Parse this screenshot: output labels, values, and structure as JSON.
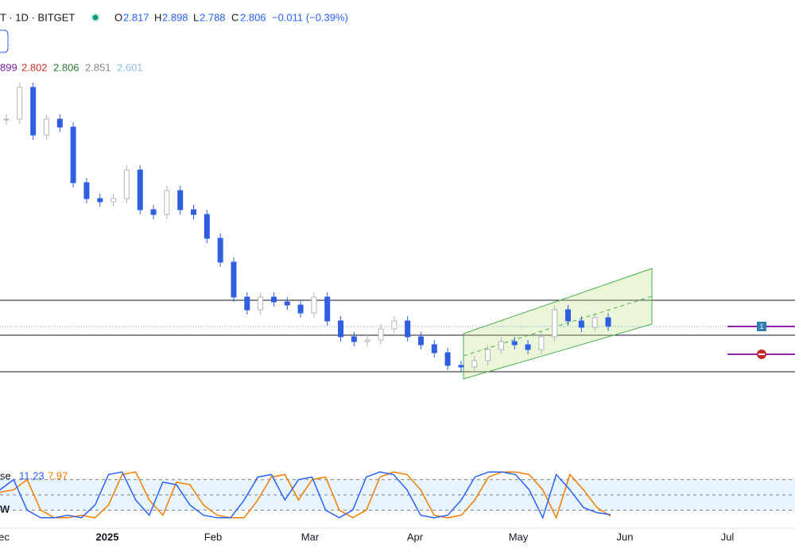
{
  "header": {
    "symbol": "T · 1D · BITGET",
    "open_label": "O",
    "open": "2.817",
    "high_label": "H",
    "high": "2.898",
    "low_label": "L",
    "low": "2.788",
    "close_label": "C",
    "close": "2.806",
    "change": "−0.011 (−0.39%)"
  },
  "indicator_legend": [
    "899",
    "2.802",
    "2.806",
    "2.851",
    "2.601"
  ],
  "price_chart": {
    "type": "candlestick",
    "closes": [
      4.11,
      4.31,
      4.01,
      4.11,
      4.06,
      3.71,
      3.61,
      3.59,
      3.61,
      3.79,
      3.54,
      3.51,
      3.66,
      3.54,
      3.51,
      3.36,
      3.21,
      2.99,
      2.91,
      2.99,
      2.96,
      2.94,
      2.89,
      2.99,
      2.84,
      2.74,
      2.71,
      2.72,
      2.79,
      2.84,
      2.74,
      2.69,
      2.64,
      2.56,
      2.55,
      2.59,
      2.66,
      2.71,
      2.69,
      2.66,
      2.74,
      2.91,
      2.84,
      2.8,
      2.86,
      2.806
    ],
    "ylim": [
      2.3,
      4.8
    ],
    "levels": [
      2.97,
      2.75,
      2.52
    ],
    "up_color": "#b2b5be",
    "down_color": "#2f5fe0"
  },
  "stochastic": {
    "name": "se",
    "k_value": "11.23",
    "d_value": "7.97",
    "k": [
      60,
      80,
      20,
      5,
      5,
      10,
      5,
      30,
      90,
      95,
      40,
      10,
      75,
      70,
      30,
      10,
      5,
      5,
      40,
      85,
      90,
      40,
      80,
      85,
      20,
      5,
      20,
      85,
      95,
      90,
      60,
      10,
      5,
      10,
      40,
      85,
      95,
      95,
      90,
      60,
      5,
      90,
      60,
      25,
      15,
      11.23
    ],
    "d": [
      55,
      60,
      80,
      20,
      5,
      5,
      10,
      5,
      30,
      90,
      95,
      40,
      10,
      75,
      70,
      30,
      10,
      5,
      5,
      40,
      85,
      90,
      40,
      80,
      85,
      20,
      5,
      20,
      85,
      95,
      90,
      60,
      10,
      5,
      10,
      40,
      85,
      95,
      95,
      90,
      60,
      5,
      90,
      60,
      25,
      7.97
    ],
    "ylim": [
      0,
      100
    ],
    "levels": [
      80,
      50,
      20
    ],
    "k_color": "#2962ff",
    "d_color": "#f57c00"
  },
  "side_label": "W",
  "marker": "1",
  "x_axis": [
    "ec",
    "2025",
    "Feb",
    "Mar",
    "Apr",
    "May",
    "Jun",
    "Jul"
  ]
}
